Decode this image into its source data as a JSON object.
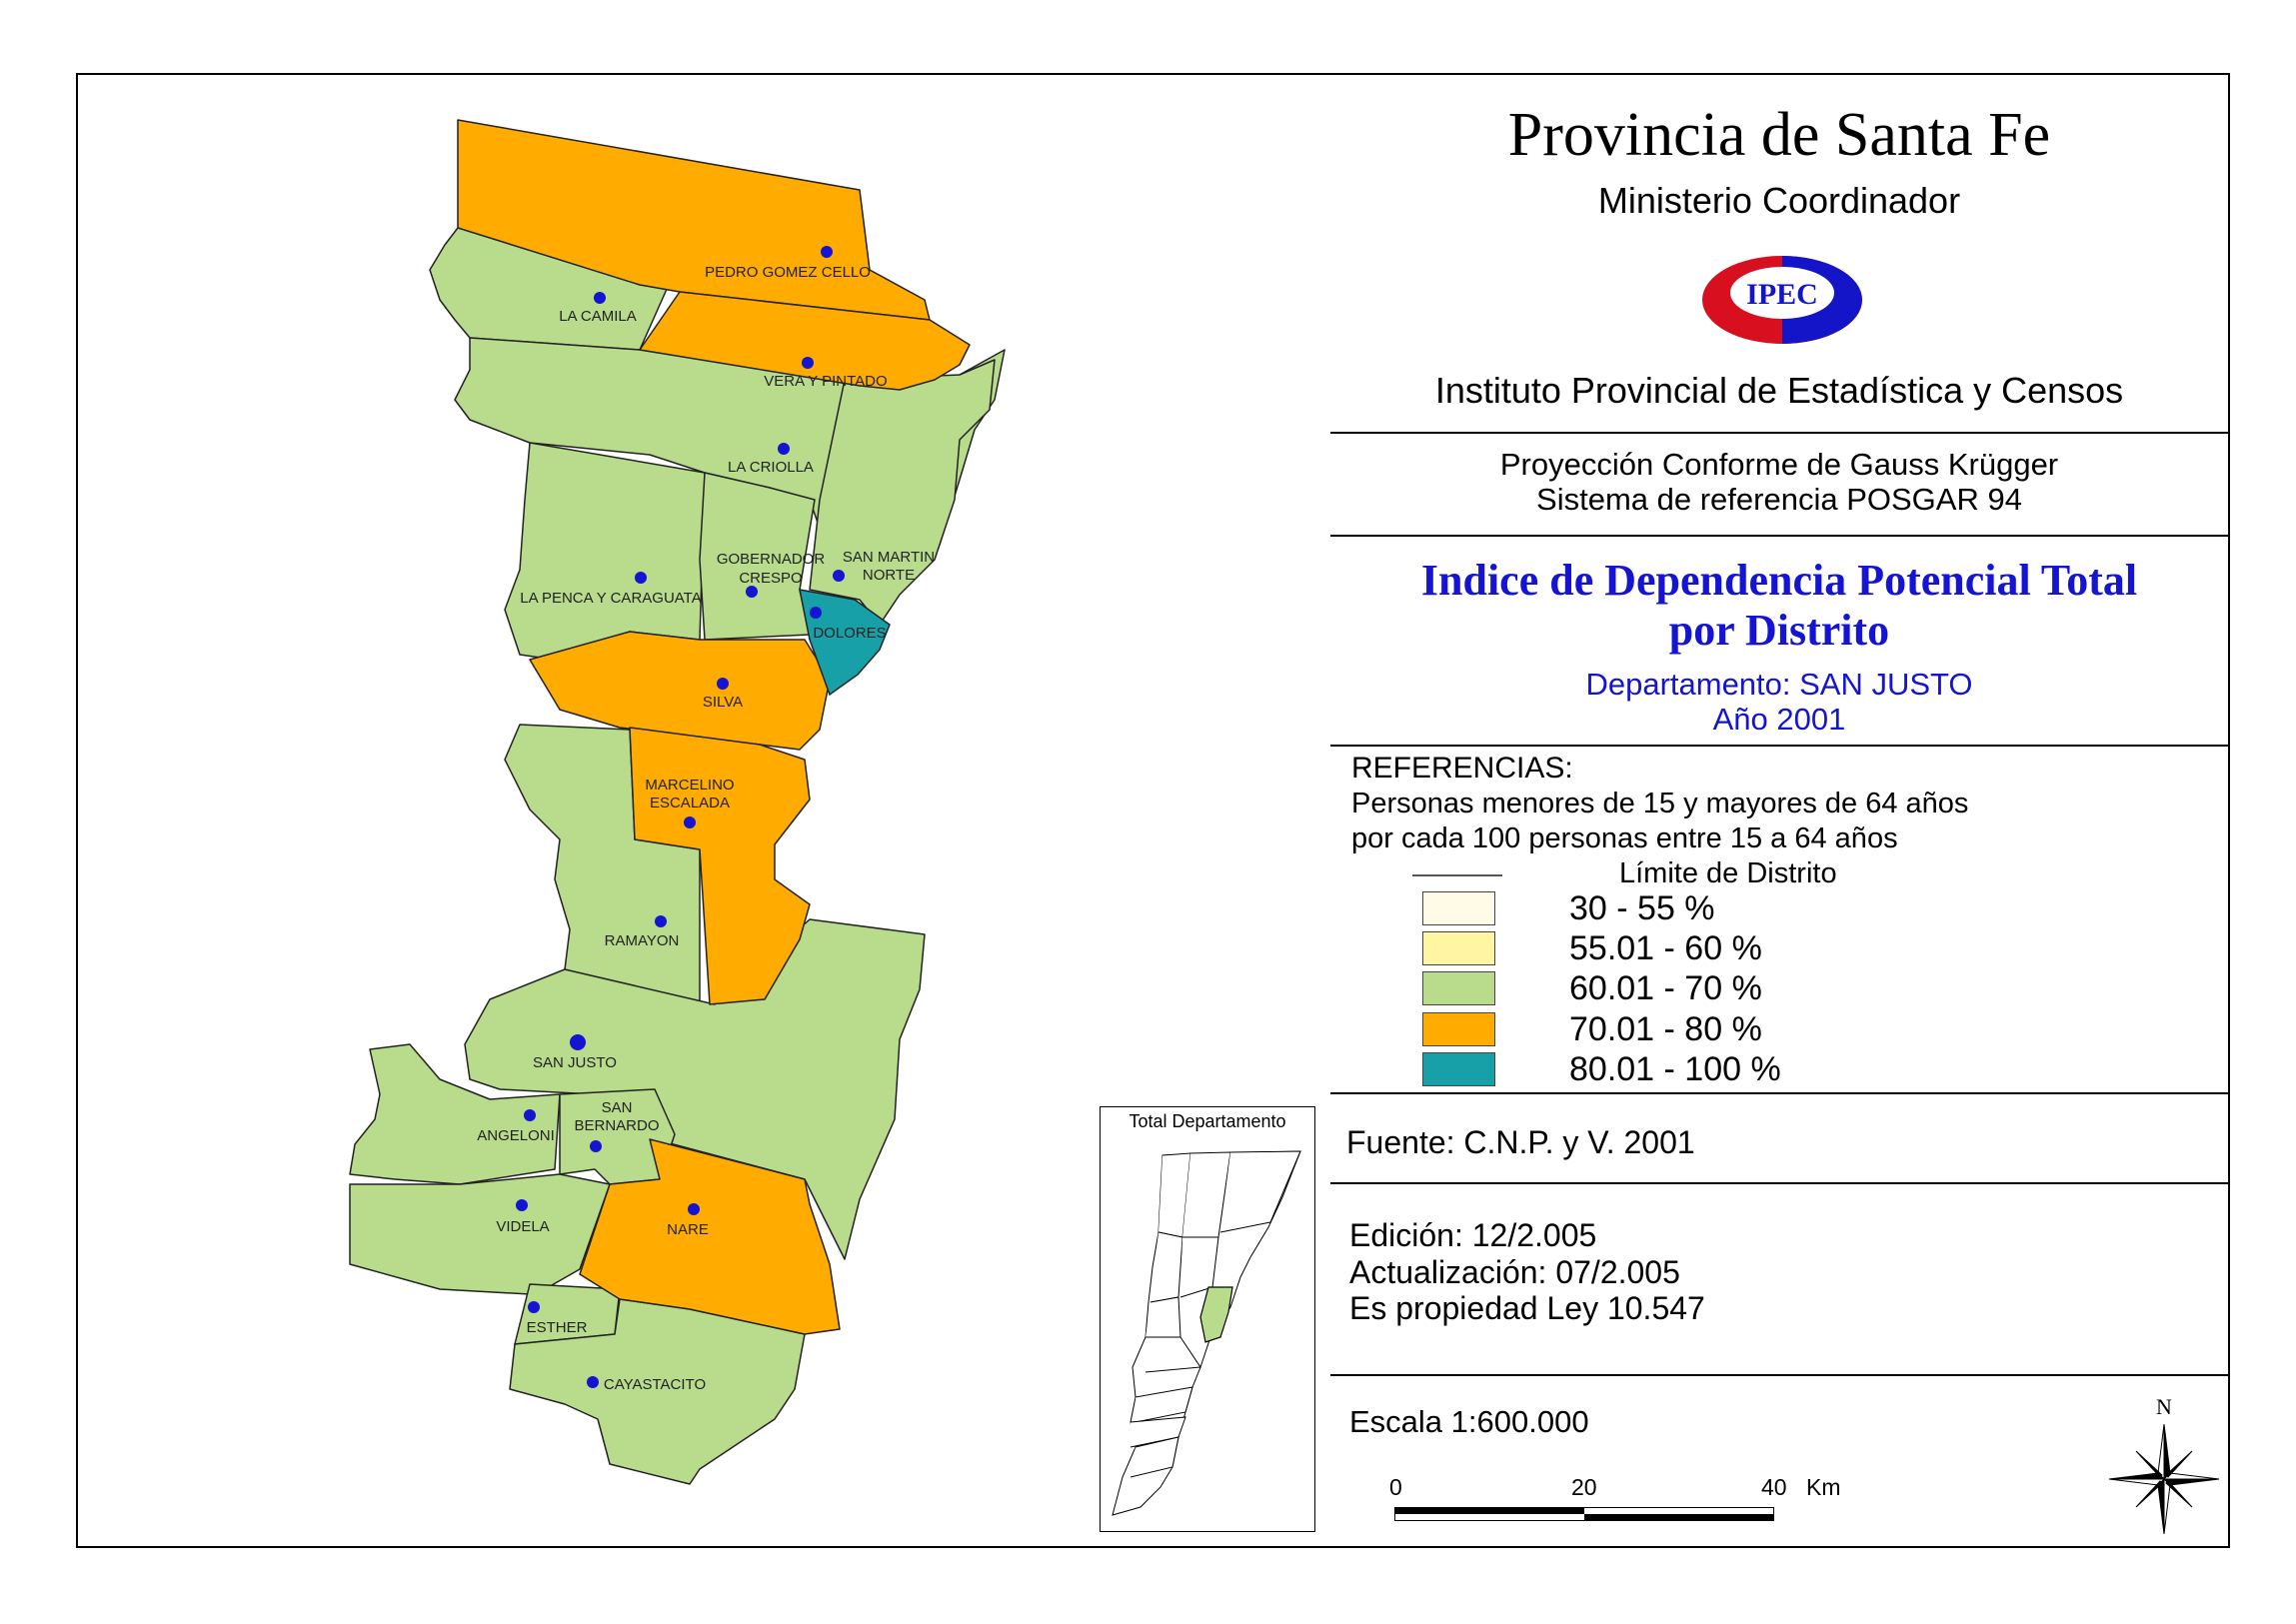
{
  "header": {
    "title": "Provincia de Santa Fe",
    "ministry": "Ministerio Coordinador",
    "logo_text": "IPEC",
    "institute": "Instituto Provincial de Estadística y Censos"
  },
  "projection": {
    "line1": "Proyección Conforme de Gauss Krügger",
    "line2": "Sistema de referencia POSGAR 94"
  },
  "map_title": {
    "line1": "Indice de Dependencia Potencial Total",
    "line2": "por Distrito",
    "department": "Departamento:  SAN JUSTO",
    "year": "Año 2001"
  },
  "legend": {
    "title": "REFERENCIAS:",
    "description_line1": "Personas menores de 15 y mayores de 64 años",
    "description_line2": "por cada 100 personas entre 15 a 64 años",
    "boundary_label": "Límite de Distrito",
    "classes": [
      {
        "label": "30 - 55 %",
        "color": "#fffbe6"
      },
      {
        "label": "55.01 - 60 %",
        "color": "#fff5a3"
      },
      {
        "label": "60.01 - 70 %",
        "color": "#b8dc8c"
      },
      {
        "label": "70.01 - 80 %",
        "color": "#ffab00"
      },
      {
        "label": "80.01 - 100 %",
        "color": "#17a0a8"
      }
    ]
  },
  "source": "Fuente:  C.N.P. y V. 2001",
  "edition": {
    "edicion": "Edición:  12/2.005",
    "actualizacion": "Actualización:  07/2.005",
    "propiedad": "Es propiedad Ley 10.547"
  },
  "scale": {
    "text": "Escala 1:600.000",
    "tick0": "0",
    "tick20": "20",
    "tick40": "40",
    "unit": "Km"
  },
  "north_label": "N",
  "inset_title": "Total Departamento",
  "districts": [
    {
      "name": "PEDRO GOMEZ CELLO",
      "class": "70.01 - 80 %"
    },
    {
      "name": "LA CAMILA",
      "class": "60.01 - 70 %"
    },
    {
      "name": "VERA Y PINTADO",
      "class": "70.01 - 80 %"
    },
    {
      "name": "LA CRIOLLA",
      "class": "60.01 - 70 %"
    },
    {
      "name": "GOBERNADOR CRESPO",
      "class": "60.01 - 70 %"
    },
    {
      "name": "SAN MARTIN NORTE",
      "class": "60.01 - 70 %"
    },
    {
      "name": "LA PENCA Y CARAGUATA",
      "class": "60.01 - 70 %"
    },
    {
      "name": "DOLORES",
      "class": "80.01 - 100 %"
    },
    {
      "name": "SILVA",
      "class": "70.01 - 80 %"
    },
    {
      "name": "MARCELINO ESCALADA",
      "class": "70.01 - 80 %"
    },
    {
      "name": "RAMAYON",
      "class": "60.01 - 70 %"
    },
    {
      "name": "SAN JUSTO",
      "class": "60.01 - 70 %"
    },
    {
      "name": "ANGELONI",
      "class": "60.01 - 70 %"
    },
    {
      "name": "SAN BERNARDO",
      "class": "60.01 - 70 %"
    },
    {
      "name": "VIDELA",
      "class": "60.01 - 70 %"
    },
    {
      "name": "NARE",
      "class": "70.01 - 80 %"
    },
    {
      "name": "ESTHER",
      "class": "60.01 - 70 %"
    },
    {
      "name": "CAYASTACITO",
      "class": "60.01 - 70 %"
    }
  ]
}
